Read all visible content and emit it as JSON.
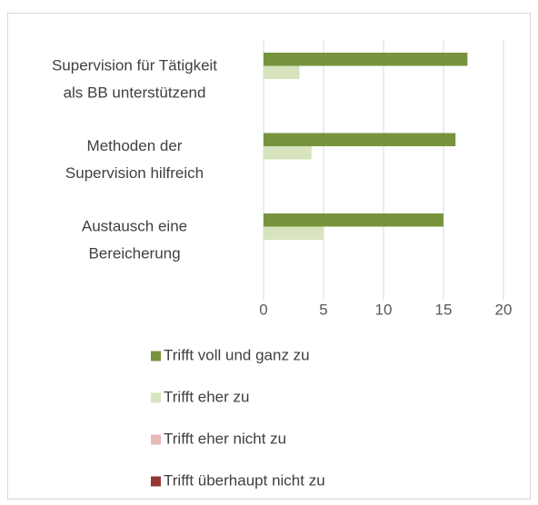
{
  "chart_data": {
    "type": "hbar",
    "categories": [
      "Supervision für Tätigkeit\nals BB unterstützend",
      "Methoden der\nSupervision hilfreich",
      "Austausch eine\nBereicherung"
    ],
    "series": [
      {
        "name": "Trifft voll und ganz zu",
        "color": "#77933c",
        "values": [
          17,
          16,
          15
        ]
      },
      {
        "name": "Trifft eher zu",
        "color": "#d7e4bd",
        "values": [
          3,
          4,
          5
        ]
      },
      {
        "name": "Trifft eher nicht zu",
        "color": "#e6b9b8",
        "values": [
          0,
          0,
          0
        ]
      },
      {
        "name": "Trifft überhaupt nicht zu",
        "color": "#953735",
        "values": [
          0,
          0,
          0
        ]
      }
    ],
    "xlim": [
      0,
      20
    ],
    "xticks": [
      0,
      5,
      10,
      15,
      20
    ],
    "grid": true
  }
}
